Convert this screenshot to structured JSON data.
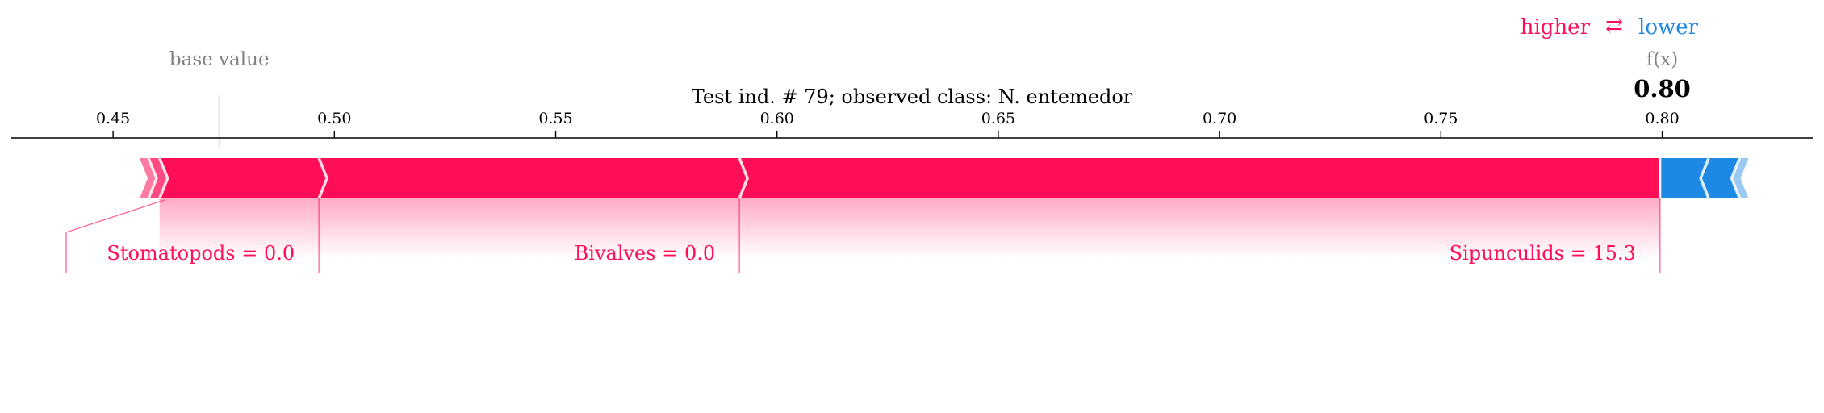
{
  "chart_data": {
    "type": "force",
    "title": "Test ind. #  79; observed class: N. entemedor",
    "legend": {
      "higher": "higher",
      "arrow": "⇄",
      "lower": "lower"
    },
    "base_value_label": "base value",
    "fx_label": "f(x)",
    "fx_value": 0.8,
    "fx_text": "0.80",
    "base_value": 0.474,
    "xlim": [
      0.427,
      0.834
    ],
    "ticks": [
      0.45,
      0.5,
      0.55,
      0.6,
      0.65,
      0.7,
      0.75,
      0.8
    ],
    "tick_labels": [
      "0.45",
      "0.50",
      "0.55",
      "0.60",
      "0.65",
      "0.70",
      "0.75",
      "0.80"
    ],
    "positive_boundaries": [
      0.456,
      0.458,
      0.4605,
      0.4965,
      0.5915,
      0.7995
    ],
    "negative_boundaries": [
      0.7995,
      0.8105,
      0.8175,
      0.8195
    ],
    "labels": [
      {
        "text": "Stomatopods = 0.0",
        "from": 0.4605,
        "to": 0.4965
      },
      {
        "text": "Bivalves = 0.0",
        "from": 0.4965,
        "to": 0.5915
      },
      {
        "text": "Sipunculids = 15.3",
        "from": 0.5915,
        "to": 0.7995
      }
    ],
    "colors": {
      "positive": "#ff0d57",
      "negative": "#1e88e5",
      "base": "#808080",
      "text": "#000000"
    }
  }
}
